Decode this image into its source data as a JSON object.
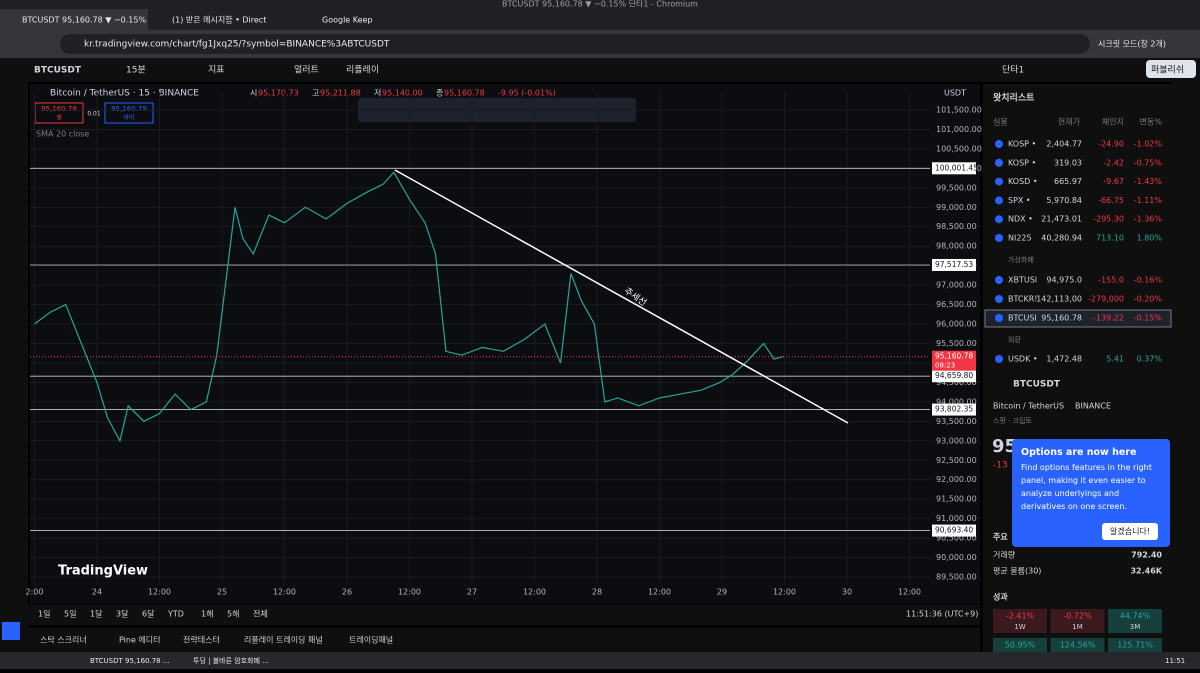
{
  "window_title": "BTCUSDT 95,160.78 ▼ −0.15% 단타1 - Chromium",
  "tabs": [
    "BTCUSDT 95,160.78 ▼ −0.15%",
    "(1) 받은 메시지함 • Direct",
    "Google Keep"
  ],
  "url": "kr.tradingview.com/chart/fg1Jxq25/?symbol=BINANCE%3ABTCUSDT",
  "incognito": "시크릿 모드(창 2개)",
  "toolbar": {
    "symbol": "BTCUSDT",
    "interval": "15분",
    "indicators": "지표",
    "alert": "얼러트",
    "replay": "리플레이",
    "layout": "단타1",
    "publish": "퍼블리쉬"
  },
  "legend": {
    "title": "Bitcoin / TetherUS · 15 · BINANCE",
    "ohlc": [
      [
        "시",
        "95,170.73"
      ],
      [
        "고",
        "95,211.88"
      ],
      [
        "저",
        "95,140.00"
      ],
      [
        "종",
        "95,160.78"
      ]
    ],
    "change": "-9.95 (-0.01%)",
    "sell_price": "95,160.78",
    "sell": "셀",
    "spread": "0.01",
    "buy_price": "95,160.79",
    "buy": "바이",
    "indicator": "SMA 20 close"
  },
  "chart": {
    "currency": "USDT",
    "logo": "TradingView",
    "ylim": [
      89115,
      101962
    ],
    "xlim": [
      -12.86,
      159.94
    ],
    "yticks": [
      {
        "value": 101500,
        "label": "101,500.00"
      },
      {
        "value": 101000,
        "label": "101,000.00"
      },
      {
        "value": 100500,
        "label": "100,500.00"
      },
      {
        "value": 100000,
        "label": "100,000.00"
      },
      {
        "value": 99500,
        "label": "99,500.00"
      },
      {
        "value": 99000,
        "label": "99,000.00"
      },
      {
        "value": 98500,
        "label": "98,500.00"
      },
      {
        "value": 98000,
        "label": "98,000.00"
      },
      {
        "value": 97500,
        "label": "97,500.00"
      },
      {
        "value": 97000,
        "label": "97,000.00"
      },
      {
        "value": 96500,
        "label": "96,500.00"
      },
      {
        "value": 96000,
        "label": "96,000.00"
      },
      {
        "value": 95500,
        "label": "95,500.00"
      },
      {
        "value": 95000,
        "label": "95,000.00"
      },
      {
        "value": 94500,
        "label": "94,500.00"
      },
      {
        "value": 94000,
        "label": "94,000.00"
      },
      {
        "value": 93500,
        "label": "93,500.00"
      },
      {
        "value": 93000,
        "label": "93,000.00"
      },
      {
        "value": 92500,
        "label": "92,500.00"
      },
      {
        "value": 92000,
        "label": "92,000.00"
      },
      {
        "value": 91500,
        "label": "91,500.00"
      },
      {
        "value": 91000,
        "label": "91,000.00"
      },
      {
        "value": 90500,
        "label": "90,500.00"
      },
      {
        "value": 90000,
        "label": "90,000.00"
      },
      {
        "value": 89500,
        "label": "89,500.00"
      }
    ],
    "xticks": [
      {
        "value": -12,
        "label": "2:00"
      },
      {
        "value": 0,
        "label": "24"
      },
      {
        "value": 12,
        "label": "12:00"
      },
      {
        "value": 24,
        "label": "25"
      },
      {
        "value": 36,
        "label": "12:00"
      },
      {
        "value": 48,
        "label": "26"
      },
      {
        "value": 60,
        "label": "12:00"
      },
      {
        "value": 72,
        "label": "27"
      },
      {
        "value": 84,
        "label": "12:00"
      },
      {
        "value": 96,
        "label": "28"
      },
      {
        "value": 108,
        "label": "12:00"
      },
      {
        "value": 120,
        "label": "29"
      },
      {
        "value": 132,
        "label": "12:00"
      },
      {
        "value": 144,
        "label": "30"
      },
      {
        "value": 156,
        "label": "12:00"
      }
    ],
    "levels": [
      {
        "value": 100001.45,
        "label": "100,001.45"
      },
      {
        "value": 97517.53,
        "label": "97,517.53"
      },
      {
        "value": 94659.8,
        "label": "94,659.80"
      },
      {
        "value": 93802.35,
        "label": "93,802.35"
      },
      {
        "value": 90693.4,
        "label": "90,693.40"
      }
    ],
    "last": {
      "value": 95160.78,
      "label": "95,160.78",
      "countdown": "08:23"
    },
    "trendline": {
      "x": [
        57.2,
        144.2
      ],
      "y": [
        99958,
        93458
      ],
      "label": "추세선"
    },
    "series": {
      "x": [
        -12,
        -9,
        -6,
        -3,
        0,
        2,
        4.4,
        6,
        9,
        12,
        15,
        18,
        21,
        23,
        26.5,
        28,
        30,
        33,
        36,
        40,
        44,
        48,
        52,
        55,
        57,
        60,
        63,
        65,
        67,
        70,
        74,
        78,
        82,
        86,
        89,
        91,
        93,
        95.5,
        97.5,
        100,
        104,
        108,
        112,
        116,
        119.6,
        122,
        124.5,
        128,
        130,
        131.7
      ],
      "values": [
        96000,
        96300,
        96500,
        95500,
        94500,
        93600,
        93000,
        93900,
        93500,
        93700,
        94200,
        93800,
        94000,
        95200,
        99000,
        98200,
        97800,
        98800,
        98600,
        99000,
        98700,
        99100,
        99400,
        99600,
        99900,
        99200,
        98600,
        97800,
        95300,
        95200,
        95400,
        95300,
        95600,
        96000,
        95000,
        97300,
        96600,
        96000,
        94000,
        94100,
        93900,
        94100,
        94200,
        94300,
        94500,
        94700,
        95000,
        95500,
        95100,
        95160.78
      ]
    }
  },
  "ranges": [
    "1일",
    "5일",
    "1달",
    "3달",
    "6달",
    "YTD",
    "1해",
    "5해",
    "전체"
  ],
  "clock": "11:51:36 (UTC+9)",
  "bottom_tabs": [
    "스탁 스크리너",
    "Pine 에디터",
    "전략테스터",
    "리플레이 트레이딩 패널",
    "트레이딩패널"
  ],
  "watchlist": {
    "title": "왓치리스트",
    "headers": [
      "심볼",
      "현재가",
      "체인지",
      "변동%"
    ],
    "rows": [
      [
        "KOSP •",
        "2,404.77",
        "-24.90",
        "-1.02%"
      ],
      [
        "KOSP •",
        "319.03",
        "-2.42",
        "-0.75%"
      ],
      [
        "KOSD •",
        "665.97",
        "-9.67",
        "-1.43%"
      ],
      [
        "SPX •",
        "5,970.84",
        "-66.75",
        "-1.11%"
      ],
      [
        "NDX •",
        "21,473.01",
        "-295.30",
        "-1.36%"
      ],
      [
        "NI225",
        "40,280.94",
        "713.10",
        "1.80%"
      ]
    ],
    "crypto_title": "가상화폐",
    "crypto": [
      [
        "XBTUSI",
        "94,975.0",
        "-155.0",
        "-0.16%"
      ],
      [
        "BTCKR!",
        "142,113,00",
        "-279,000",
        "-0.20%"
      ],
      [
        "BTCUSI",
        "95,160.78",
        "-139.22",
        "-0.15%"
      ]
    ],
    "fx_title": "외환",
    "fx": [
      [
        "USDK •",
        "1,472.48",
        "5.41",
        "0.37%"
      ]
    ]
  },
  "details": {
    "symbol": "BTCUSDT",
    "name": "Bitcoin / TetherUS",
    "exchange": "BINANCE",
    "kind": "스팟 · 크립토",
    "price": "95",
    "change": "-13",
    "key": "주요",
    "volume_label": "거래량",
    "volume": "792.40",
    "avg_label": "평균 볼륨(30)",
    "avg": "32.46K",
    "perf_title": "성과",
    "perf": [
      [
        "-2.41%",
        "1W"
      ],
      [
        "-0.72%",
        "1M"
      ],
      [
        "44.74%",
        "3M"
      ]
    ],
    "perf2": [
      "50.95%",
      "124.56%",
      "125.71%"
    ]
  },
  "popup": {
    "title": "Options are now here",
    "body": "Find options features in the right panel, making it even easier to analyze underlyings and derivatives on one screen.",
    "button": "알겠습니다!"
  },
  "taskbar": {
    "items": [
      "BTCUSDT 95,160.78 ...",
      "투딩 | 볼바른 암호화폐 ..."
    ],
    "time": "11:51"
  }
}
